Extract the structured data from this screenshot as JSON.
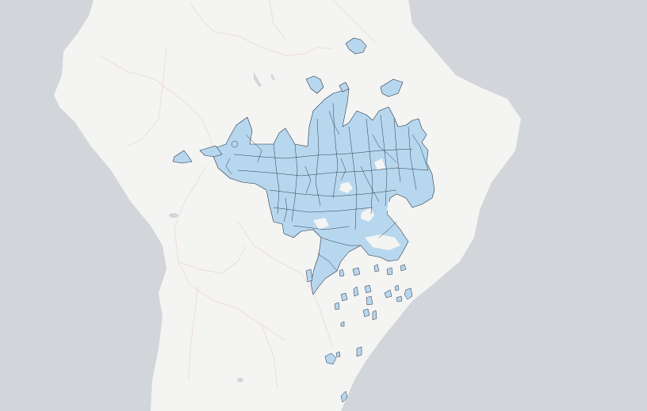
{
  "map": {
    "colors": {
      "ocean": "#d2d5da",
      "land": "#f4f4f3",
      "country_border": "#ecd6d6",
      "highlight_fill": "#b7d7ef",
      "highlight_stroke": "#1f2a36"
    },
    "labels": []
  }
}
